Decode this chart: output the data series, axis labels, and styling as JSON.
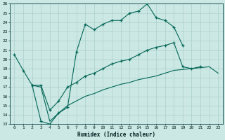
{
  "xlabel": "Humidex (Indice chaleur)",
  "xlim": [
    -0.5,
    23.5
  ],
  "ylim": [
    13,
    26
  ],
  "yticks": [
    13,
    14,
    15,
    16,
    17,
    18,
    19,
    20,
    21,
    22,
    23,
    24,
    25,
    26
  ],
  "xticks": [
    0,
    1,
    2,
    3,
    4,
    5,
    6,
    7,
    8,
    9,
    10,
    11,
    12,
    13,
    14,
    15,
    16,
    17,
    18,
    19,
    20,
    21,
    22,
    23
  ],
  "bg_color": "#cce8e4",
  "line_color": "#006655",
  "grid_color": "#aacfcb",
  "lines": [
    {
      "x": [
        0,
        1,
        2,
        3,
        4,
        5,
        6,
        7,
        8,
        9,
        10,
        11,
        12,
        13,
        14,
        15,
        16,
        17,
        18,
        19
      ],
      "y": [
        20.5,
        18.8,
        17.2,
        13.3,
        13.0,
        14.2,
        14.8,
        20.8,
        23.8,
        23.2,
        23.8,
        24.2,
        24.2,
        25.0,
        25.2,
        26.0,
        24.5,
        24.2,
        23.5,
        21.5
      ],
      "marker": true
    },
    {
      "x": [
        2,
        3,
        4,
        5,
        6,
        7,
        8,
        9,
        10,
        11,
        12,
        13,
        14,
        15,
        16,
        17,
        18,
        19,
        20,
        21
      ],
      "y": [
        17.2,
        17.2,
        14.5,
        15.5,
        17.0,
        17.5,
        18.2,
        18.5,
        19.0,
        19.5,
        19.8,
        20.0,
        20.5,
        21.0,
        21.3,
        21.5,
        21.8,
        19.2,
        19.0,
        19.2
      ],
      "marker": true
    },
    {
      "x": [
        2,
        3,
        4,
        5,
        6,
        7,
        8,
        9,
        10,
        11,
        12,
        13,
        14,
        15,
        16,
        17,
        18,
        22,
        23
      ],
      "y": [
        17.2,
        17.0,
        13.3,
        14.2,
        15.0,
        15.5,
        16.0,
        16.3,
        16.7,
        17.0,
        17.3,
        17.5,
        17.8,
        18.0,
        18.2,
        18.5,
        18.8,
        19.2,
        18.5
      ],
      "marker": false
    }
  ]
}
